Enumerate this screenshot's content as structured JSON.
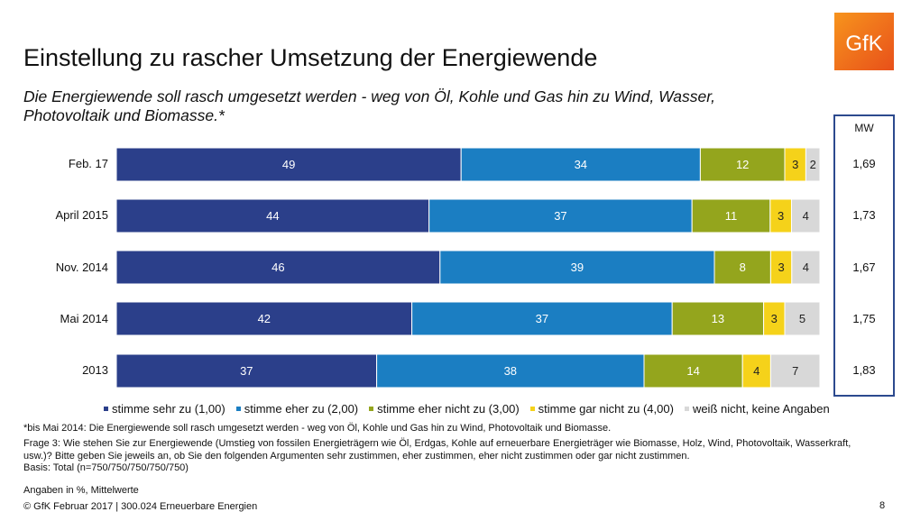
{
  "title": "Einstellung zu rascher Umsetzung der Energiewende",
  "subtitle": "Die Energiewende soll rasch umgesetzt werden - weg von Öl, Kohle und Gas hin zu Wind, Wasser, Photovoltaik und Biomasse.*",
  "logo_text": "GfK",
  "mw_header": "MW",
  "mw_values": [
    "1,69",
    "1,73",
    "1,67",
    "1,75",
    "1,83"
  ],
  "chart_data": {
    "type": "bar",
    "orientation": "horizontal",
    "stacked": true,
    "categories": [
      "Feb. 17",
      "April 2015",
      "Nov. 2014",
      "Mai 2014",
      "2013"
    ],
    "series": [
      {
        "name": "stimme sehr zu (1,00)",
        "color": "#2b3f8a",
        "values": [
          49,
          44,
          46,
          42,
          37
        ]
      },
      {
        "name": "stimme eher zu (2,00)",
        "color": "#1b7ec2",
        "values": [
          34,
          37,
          39,
          37,
          38
        ]
      },
      {
        "name": "stimme eher nicht zu (3,00)",
        "color": "#94a51d",
        "values": [
          12,
          11,
          8,
          13,
          14
        ]
      },
      {
        "name": "stimme gar nicht zu (4,00)",
        "color": "#f5d21a",
        "values": [
          3,
          3,
          3,
          3,
          4
        ]
      },
      {
        "name": "weiß nicht, keine Angaben",
        "color": "#d8d8d8",
        "values": [
          2,
          4,
          4,
          5,
          7
        ]
      }
    ]
  },
  "footnotes": {
    "note1": "*bis Mai 2014: Die Energiewende soll rasch umgesetzt werden - weg von Öl, Kohle und Gas hin zu Wind, Photovoltaik und Biomasse.",
    "question": "Frage 3: Wie stehen Sie zur Energiewende (Umstieg von fossilen Energieträgern wie Öl, Erdgas, Kohle auf erneuerbare Energieträger wie Biomasse, Holz, Wind, Photovoltaik, Wasserkraft, usw.)? Bitte geben Sie jeweils an, ob Sie den folgenden Argumenten sehr zustimmen, eher zustimmen, eher nicht zustimmen oder gar nicht zustimmen.",
    "basis": "Basis: Total (n=750/750/750/750/750)",
    "units": "Angaben in %, Mittelwerte",
    "copyright": "© GfK Februar 2017 | 300.024 Erneuerbare Energien"
  },
  "page_number": "8"
}
